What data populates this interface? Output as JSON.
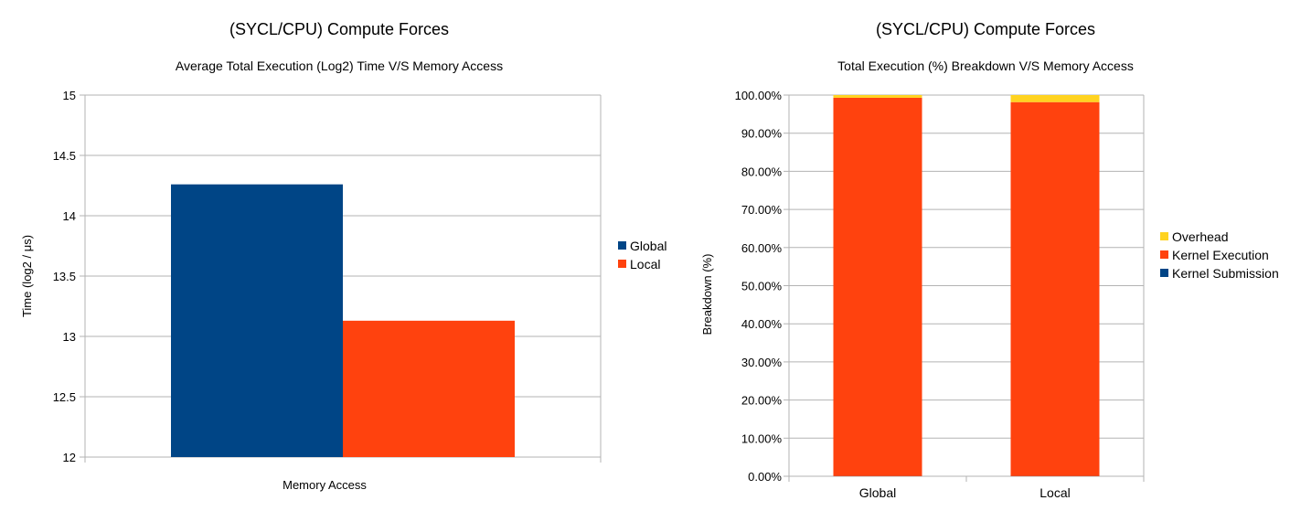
{
  "colors": {
    "global": "#004586",
    "local": "#ff420e",
    "overhead": "#ffd320",
    "kernel_execution": "#ff420e",
    "kernel_submission": "#004586",
    "grid": "#b3b3b3"
  },
  "chart_data": [
    {
      "type": "bar",
      "title": "(SYCL/CPU) Compute Forces",
      "subtitle": "Average Total Execution (Log2) Time V/S Memory Access",
      "xlabel": "Memory Access",
      "ylabel": "Time (log2 / μs)",
      "categories": [
        ""
      ],
      "series": [
        {
          "name": "Global",
          "values": [
            14.26
          ]
        },
        {
          "name": "Local",
          "values": [
            13.13
          ]
        }
      ],
      "ylim": [
        12,
        15
      ],
      "yticks": [
        "12",
        "12.5",
        "13",
        "13.5",
        "14",
        "14.5",
        "15"
      ],
      "grid": true,
      "legend_position": "right"
    },
    {
      "type": "bar",
      "stacked": true,
      "title": "(SYCL/CPU) Compute Forces",
      "subtitle": "Total Execution (%) Breakdown V/S Memory Access",
      "xlabel": "",
      "ylabel": "Breakdown (%)",
      "categories": [
        "Global",
        "Local"
      ],
      "series": [
        {
          "name": "Kernel Submission",
          "values": [
            0.05,
            0.05
          ]
        },
        {
          "name": "Kernel Execution",
          "values": [
            99.25,
            98.1
          ]
        },
        {
          "name": "Overhead",
          "values": [
            0.7,
            1.85
          ]
        }
      ],
      "legend_order": [
        "Overhead",
        "Kernel Execution",
        "Kernel Submission"
      ],
      "ylim": [
        0,
        100
      ],
      "yticks": [
        "0.00%",
        "10.00%",
        "20.00%",
        "30.00%",
        "40.00%",
        "50.00%",
        "60.00%",
        "70.00%",
        "80.00%",
        "90.00%",
        "100.00%"
      ],
      "grid": true,
      "legend_position": "right"
    }
  ]
}
